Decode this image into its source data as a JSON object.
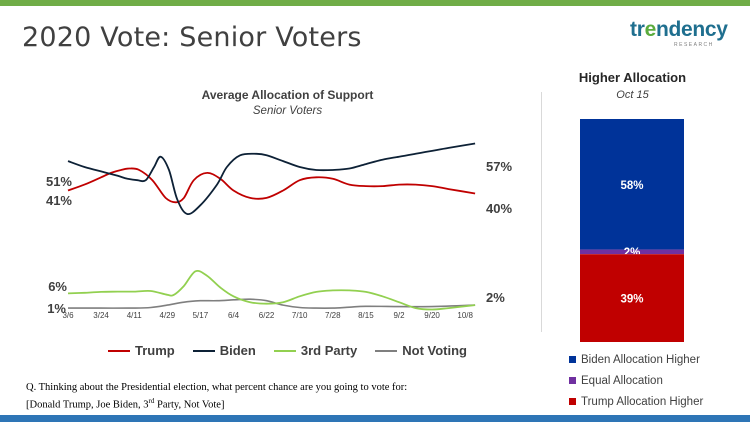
{
  "header": {
    "title": "2020 Vote: Senior Voters",
    "logo_text_a": "tr",
    "logo_text_e": "e",
    "logo_text_b": "ndency",
    "logo_sub": "RESEARCH"
  },
  "colors": {
    "trump": "#c00000",
    "biden": "#0d2136",
    "third": "#92d050",
    "not_voting": "#7f7f7f",
    "bar_biden": "#003399",
    "bar_equal": "#7030a0",
    "bar_trump": "#c00000"
  },
  "chart_data": [
    {
      "type": "line",
      "title": "Average Allocation of Support",
      "subtitle": "Senior Voters",
      "categories": [
        "3/6",
        "3/24",
        "4/11",
        "4/29",
        "5/17",
        "6/4",
        "6/22",
        "7/10",
        "7/28",
        "8/15",
        "9/2",
        "9/20",
        "10/8"
      ],
      "ylim": [
        0,
        65
      ],
      "series": [
        {
          "name": "Trump",
          "x": [
            0,
            0.5,
            1,
            1.3,
            1.6,
            1.85,
            2.15,
            2.55,
            2.95,
            3.25,
            3.5,
            3.8,
            4.2,
            4.6,
            5,
            5.5,
            6,
            6.5,
            7,
            7.5,
            8,
            8.5,
            9,
            9.5,
            10,
            10.5,
            11,
            11.5,
            12.3
          ],
          "values": [
            41,
            43,
            45.5,
            47,
            48,
            48.5,
            48,
            44.5,
            38.5,
            37,
            38.5,
            44.5,
            47,
            45,
            41,
            38.5,
            38.5,
            41,
            44.5,
            45.5,
            45,
            43,
            42.5,
            42.5,
            43,
            43,
            42.5,
            41.5,
            40
          ],
          "start_label": "41%",
          "end_label": "40%"
        },
        {
          "name": "Biden",
          "x": [
            0,
            0.5,
            1,
            1.5,
            1.8,
            2.1,
            2.35,
            2.6,
            2.8,
            3.05,
            3.3,
            3.6,
            4,
            4.5,
            4.8,
            5.2,
            5.7,
            6,
            6.5,
            7,
            7.5,
            8,
            8.5,
            9,
            9.5,
            10,
            10.5,
            11,
            11.5,
            12.3
          ],
          "values": [
            51,
            49,
            47.5,
            46,
            45,
            44.5,
            44.5,
            49,
            52.5,
            48,
            38,
            33,
            36,
            43,
            49,
            53,
            53.5,
            53,
            51,
            49,
            48,
            48,
            48.5,
            50,
            51.5,
            52.5,
            53.5,
            54.5,
            55.5,
            57
          ],
          "start_label": "51%",
          "end_label": "57%"
        },
        {
          "name": "3rd Party",
          "x": [
            0,
            0.5,
            1,
            1.5,
            2,
            2.5,
            3,
            3.2,
            3.5,
            3.85,
            4.2,
            4.6,
            5,
            5.5,
            6,
            6.5,
            7,
            7.5,
            8,
            8.5,
            9,
            9.5,
            10,
            10.5,
            11,
            11.5,
            12.3
          ],
          "values": [
            6,
            6.2,
            6.5,
            6.6,
            6.6,
            6.8,
            5.5,
            5.5,
            8.5,
            13.5,
            12,
            8,
            5,
            3,
            2.5,
            3,
            5,
            6.5,
            7,
            7,
            6.5,
            5,
            3,
            1,
            0.5,
            1,
            2
          ],
          "start_label": "6%",
          "end_label": "2%"
        },
        {
          "name": "Not Voting",
          "x": [
            0,
            1,
            2,
            2.5,
            3,
            3.5,
            4,
            4.5,
            5,
            5.5,
            6,
            6.5,
            7,
            7.5,
            8,
            8.5,
            9,
            10,
            11,
            12.3
          ],
          "values": [
            1,
            1,
            1,
            1.2,
            2,
            3,
            3.5,
            3.5,
            3.8,
            4,
            3.5,
            2,
            1.2,
            1,
            1,
            1.3,
            1.6,
            1.5,
            1.5,
            2
          ],
          "start_label": "1%",
          "end_label": ""
        }
      ]
    },
    {
      "type": "bar",
      "title": "Higher Allocation",
      "subtitle": "Oct 15",
      "stacked": true,
      "series": [
        {
          "name": "Biden Allocation Higher",
          "value": 58,
          "label": "58%"
        },
        {
          "name": "Equal Allocation",
          "value": 2,
          "label": "2%"
        },
        {
          "name": "Trump Allocation Higher",
          "value": 39,
          "label": "39%"
        }
      ]
    }
  ],
  "legend": [
    "Trump",
    "Biden",
    "3rd Party",
    "Not Voting"
  ],
  "footnote": {
    "line1": "Q. Thinking about the Presidential election, what percent chance are you going to vote for:",
    "line2a": "[Donald Trump, Joe Biden, 3",
    "line2sup": "rd",
    "line2b": " Party, Not Vote]"
  }
}
